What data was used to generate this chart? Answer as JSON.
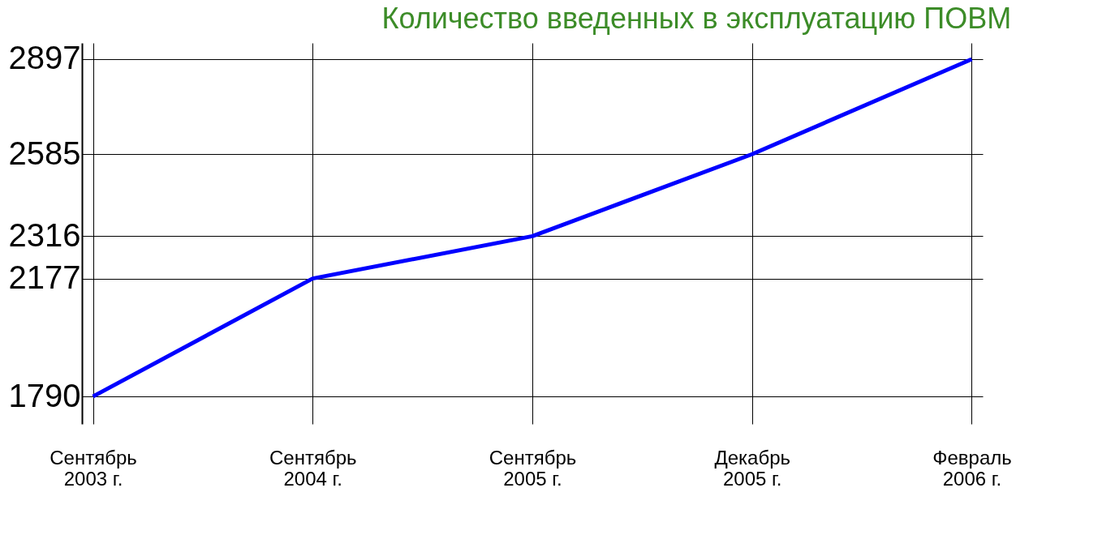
{
  "chart_data": {
    "type": "line",
    "title": "Количество введенных в эксплуатацию ПОВМ",
    "categories": [
      "Сентябрь 2003 г.",
      "Сентябрь 2004 г.",
      "Сентябрь 2005 г.",
      "Декабрь 2005 г.",
      "Февраль 2006 г."
    ],
    "series": [
      {
        "color": "#0000ff",
        "values": [
          1790,
          2177,
          2316,
          2585,
          2897
        ]
      }
    ],
    "ylim": [
      1700,
      2950
    ],
    "yticks": [
      1790,
      2177,
      2316,
      2585,
      2897
    ],
    "grid": true,
    "marker": "none",
    "line_style": "solid"
  }
}
